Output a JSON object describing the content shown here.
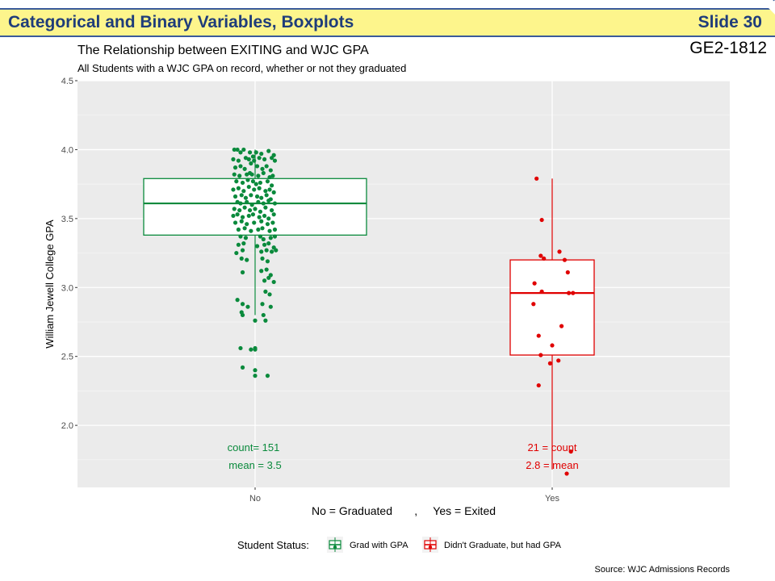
{
  "slide": {
    "title": "Categorical and Binary Variables, Boxplots",
    "slide_number": "Slide 30",
    "course_code": "GE2-1812",
    "accent_color": "#fdf58c",
    "title_color": "#1f3d7a"
  },
  "chart_data": {
    "type": "box",
    "title": "The Relationship between EXITING and WJC GPA",
    "subtitle": "All Students with a WJC GPA on record, whether or not they graduated",
    "xlabel": "No = Graduated       ,     Yes = Exited",
    "ylabel": "William Jewell College GPA",
    "ylim": [
      1.55,
      4.5
    ],
    "yticks": [
      "2.0",
      "2.5",
      "3.0",
      "3.5",
      "4.0",
      "4.5"
    ],
    "categories": [
      "No",
      "Yes"
    ],
    "grid": true,
    "legend": {
      "title": "Student Status:",
      "position": "bottom",
      "entries": [
        "Grad with GPA",
        "Didn't Graduate, but had GPA"
      ]
    },
    "series": [
      {
        "name": "Grad with GPA",
        "category": "No",
        "color": "#0a8a3c",
        "q1": 3.38,
        "median": 3.61,
        "q3": 3.79,
        "whisker_low": 2.8,
        "whisker_high": 4.0,
        "count_label": "count= 151",
        "mean_label": "mean = 3.5",
        "points": [
          [
            -0.2,
            4.0
          ],
          [
            -0.17,
            4.0
          ],
          [
            -0.14,
            3.98
          ],
          [
            -0.11,
            4.0
          ],
          [
            -0.05,
            3.98
          ],
          [
            -0.02,
            3.95
          ],
          [
            0.01,
            3.98
          ],
          [
            0.06,
            3.97
          ],
          [
            0.13,
            3.99
          ],
          [
            0.18,
            3.96
          ],
          [
            -0.21,
            3.93
          ],
          [
            -0.16,
            3.92
          ],
          [
            -0.09,
            3.94
          ],
          [
            -0.06,
            3.93
          ],
          [
            -0.01,
            3.92
          ],
          [
            0.04,
            3.94
          ],
          [
            0.09,
            3.93
          ],
          [
            0.16,
            3.94
          ],
          [
            0.19,
            3.92
          ],
          [
            -0.19,
            3.87
          ],
          [
            -0.14,
            3.88
          ],
          [
            -0.1,
            3.86
          ],
          [
            -0.04,
            3.9
          ],
          [
            0.02,
            3.88
          ],
          [
            0.07,
            3.86
          ],
          [
            0.11,
            3.88
          ],
          [
            0.15,
            3.85
          ],
          [
            -0.2,
            3.82
          ],
          [
            -0.15,
            3.81
          ],
          [
            -0.08,
            3.82
          ],
          [
            -0.05,
            3.83
          ],
          [
            -0.03,
            3.82
          ],
          [
            0.03,
            3.81
          ],
          [
            0.08,
            3.83
          ],
          [
            0.14,
            3.8
          ],
          [
            0.17,
            3.81
          ],
          [
            -0.18,
            3.77
          ],
          [
            -0.12,
            3.76
          ],
          [
            -0.07,
            3.78
          ],
          [
            -0.02,
            3.77
          ],
          [
            0.01,
            3.75
          ],
          [
            0.05,
            3.76
          ],
          [
            0.12,
            3.77
          ],
          [
            0.16,
            3.74
          ],
          [
            -0.21,
            3.71
          ],
          [
            -0.16,
            3.72
          ],
          [
            -0.11,
            3.7
          ],
          [
            -0.06,
            3.73
          ],
          [
            -0.01,
            3.71
          ],
          [
            0.04,
            3.72
          ],
          [
            0.1,
            3.7
          ],
          [
            0.14,
            3.71
          ],
          [
            0.18,
            3.69
          ],
          [
            -0.19,
            3.66
          ],
          [
            -0.13,
            3.67
          ],
          [
            -0.09,
            3.65
          ],
          [
            -0.04,
            3.67
          ],
          [
            0.02,
            3.66
          ],
          [
            0.06,
            3.65
          ],
          [
            0.11,
            3.67
          ],
          [
            0.15,
            3.64
          ],
          [
            -0.17,
            3.62
          ],
          [
            -0.14,
            3.61
          ],
          [
            -0.08,
            3.62
          ],
          [
            -0.03,
            3.6
          ],
          [
            0.03,
            3.62
          ],
          [
            0.08,
            3.61
          ],
          [
            0.13,
            3.63
          ],
          [
            0.19,
            3.61
          ],
          [
            -0.2,
            3.57
          ],
          [
            -0.15,
            3.56
          ],
          [
            -0.1,
            3.58
          ],
          [
            -0.05,
            3.56
          ],
          [
            0.0,
            3.57
          ],
          [
            0.05,
            3.55
          ],
          [
            0.1,
            3.58
          ],
          [
            0.16,
            3.56
          ],
          [
            -0.21,
            3.52
          ],
          [
            -0.17,
            3.53
          ],
          [
            -0.12,
            3.51
          ],
          [
            -0.06,
            3.52
          ],
          [
            -0.02,
            3.53
          ],
          [
            0.04,
            3.51
          ],
          [
            0.09,
            3.52
          ],
          [
            0.13,
            3.5
          ],
          [
            0.18,
            3.53
          ],
          [
            -0.19,
            3.47
          ],
          [
            -0.13,
            3.48
          ],
          [
            -0.08,
            3.46
          ],
          [
            -0.01,
            3.47
          ],
          [
            0.06,
            3.48
          ],
          [
            0.12,
            3.46
          ],
          [
            0.17,
            3.47
          ],
          [
            -0.16,
            3.42
          ],
          [
            -0.1,
            3.43
          ],
          [
            -0.04,
            3.41
          ],
          [
            0.03,
            3.42
          ],
          [
            0.07,
            3.43
          ],
          [
            0.14,
            3.41
          ],
          [
            0.19,
            3.42
          ],
          [
            -0.14,
            3.37
          ],
          [
            -0.09,
            3.36
          ],
          [
            0.05,
            3.37
          ],
          [
            0.08,
            3.35
          ],
          [
            0.15,
            3.36
          ],
          [
            0.19,
            3.37
          ],
          [
            -0.16,
            3.31
          ],
          [
            -0.11,
            3.32
          ],
          [
            0.02,
            3.3
          ],
          [
            0.09,
            3.31
          ],
          [
            0.13,
            3.32
          ],
          [
            0.18,
            3.29
          ],
          [
            -0.18,
            3.25
          ],
          [
            -0.12,
            3.27
          ],
          [
            0.06,
            3.26
          ],
          [
            0.11,
            3.27
          ],
          [
            0.16,
            3.26
          ],
          [
            0.2,
            3.27
          ],
          [
            -0.13,
            3.21
          ],
          [
            -0.08,
            3.2
          ],
          [
            0.07,
            3.21
          ],
          [
            0.12,
            3.19
          ],
          [
            -0.12,
            3.11
          ],
          [
            0.06,
            3.12
          ],
          [
            0.11,
            3.13
          ],
          [
            0.15,
            3.09
          ],
          [
            0.09,
            3.05
          ],
          [
            0.13,
            3.07
          ],
          [
            0.18,
            3.04
          ],
          [
            0.1,
            2.97
          ],
          [
            0.14,
            2.95
          ],
          [
            -0.17,
            2.91
          ],
          [
            -0.12,
            2.88
          ],
          [
            -0.07,
            2.86
          ],
          [
            0.07,
            2.88
          ],
          [
            0.15,
            2.86
          ],
          [
            -0.13,
            2.82
          ],
          [
            -0.12,
            2.8
          ],
          [
            0.08,
            2.8
          ],
          [
            0.1,
            2.76
          ],
          [
            -0.14,
            2.56
          ],
          [
            -0.04,
            2.55
          ],
          [
            0.0,
            2.56
          ],
          [
            0.0,
            2.55
          ],
          [
            -0.12,
            2.42
          ],
          [
            0.0,
            2.4
          ],
          [
            0.0,
            2.36
          ],
          [
            0.12,
            2.36
          ],
          [
            0.0,
            2.76
          ]
        ]
      },
      {
        "name": "Didn't Graduate, but had GPA",
        "category": "Yes",
        "color": "#e00000",
        "q1": 2.51,
        "median": 2.96,
        "q3": 3.2,
        "whisker_low": 1.68,
        "whisker_high": 3.79,
        "count_label": "21 = count",
        "mean_label": "2.8 = mean",
        "points": [
          [
            -0.15,
            3.79
          ],
          [
            -0.1,
            3.49
          ],
          [
            -0.11,
            3.23
          ],
          [
            -0.08,
            3.21
          ],
          [
            0.07,
            3.26
          ],
          [
            0.12,
            3.2
          ],
          [
            0.15,
            3.11
          ],
          [
            -0.17,
            3.03
          ],
          [
            -0.18,
            2.88
          ],
          [
            -0.1,
            2.97
          ],
          [
            0.16,
            2.96
          ],
          [
            0.2,
            2.96
          ],
          [
            0.09,
            2.72
          ],
          [
            -0.13,
            2.65
          ],
          [
            0.0,
            2.58
          ],
          [
            -0.11,
            2.51
          ],
          [
            -0.02,
            2.45
          ],
          [
            0.06,
            2.47
          ],
          [
            -0.13,
            2.29
          ],
          [
            0.18,
            1.81
          ],
          [
            0.14,
            1.65
          ]
        ]
      }
    ]
  },
  "source": "Source: WJC Admissions Records"
}
